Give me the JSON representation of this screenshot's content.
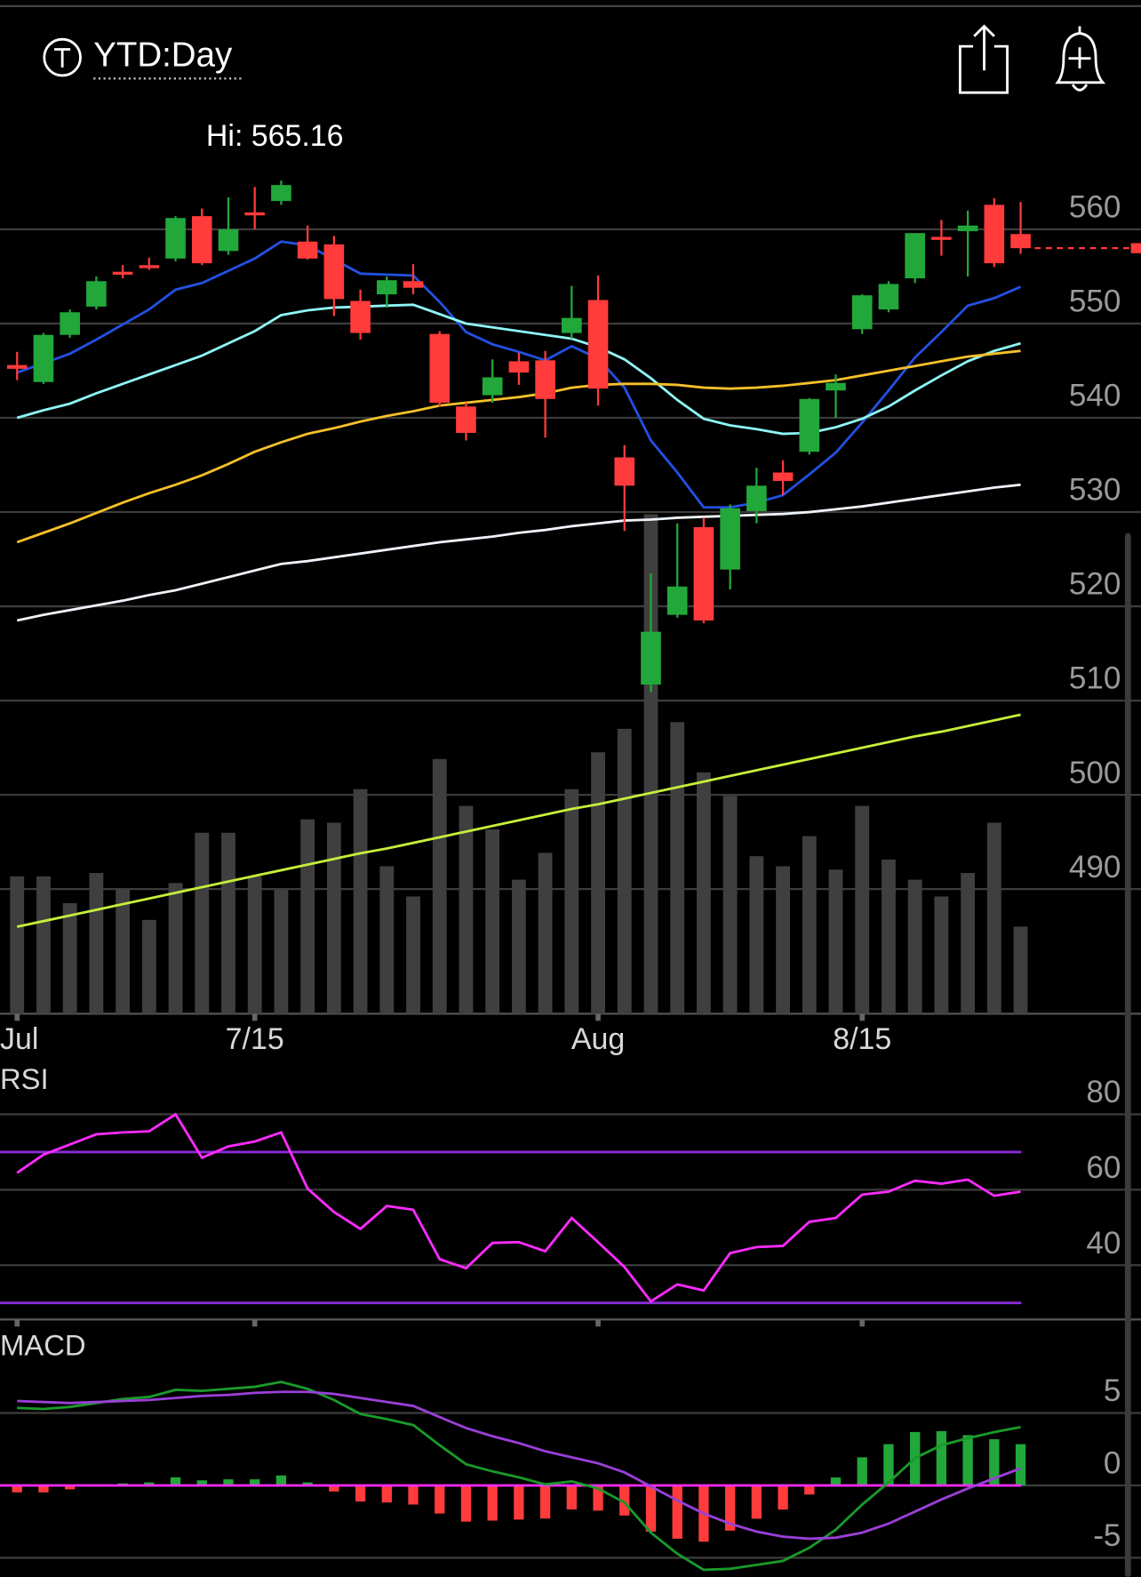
{
  "header": {
    "title": "YTD:Day"
  },
  "chart_data": {
    "type": "candlestick",
    "annotation": "Hi: 565.16",
    "categories": [
      "Jul",
      null,
      null,
      null,
      null,
      null,
      null,
      null,
      null,
      "7/15",
      null,
      null,
      null,
      null,
      null,
      null,
      null,
      null,
      null,
      null,
      null,
      null,
      "Aug",
      null,
      null,
      null,
      null,
      null,
      null,
      null,
      null,
      null,
      "8/15",
      null,
      null,
      null,
      null,
      null,
      null
    ],
    "open": [
      545.6,
      543.8,
      548.8,
      551.8,
      555.5,
      556.2,
      556.9,
      561.4,
      557.7,
      561.8,
      563.0,
      558.7,
      558.4,
      552.4,
      553.1,
      554.5,
      548.9,
      541.2,
      542.4,
      546.0,
      546.1,
      549.0,
      552.5,
      535.8,
      511.7,
      519.1,
      528.4,
      523.9,
      530.1,
      534.2,
      536.4,
      542.9,
      549.4,
      551.5,
      554.8,
      559.2,
      559.8,
      562.6,
      559.5
    ],
    "high": [
      547.0,
      549.0,
      551.5,
      555.0,
      556.2,
      557.0,
      561.4,
      562.2,
      563.4,
      564.5,
      565.16,
      560.4,
      559.3,
      553.6,
      555.0,
      556.3,
      549.2,
      541.6,
      546.2,
      546.9,
      547.1,
      554.0,
      555.1,
      537.1,
      523.5,
      528.8,
      529.4,
      530.8,
      534.7,
      535.5,
      542.1,
      544.6,
      553.1,
      554.5,
      559.6,
      561.0,
      562.0,
      563.3,
      562.9
    ],
    "low": [
      544.0,
      543.6,
      548.5,
      551.5,
      554.8,
      555.7,
      556.6,
      556.2,
      557.3,
      560.0,
      562.6,
      556.8,
      550.8,
      548.3,
      551.7,
      553.1,
      541.2,
      537.6,
      541.6,
      543.5,
      537.9,
      548.4,
      541.3,
      528.0,
      510.9,
      518.8,
      518.2,
      521.8,
      528.8,
      531.8,
      536.1,
      540.0,
      548.9,
      551.2,
      554.3,
      557.2,
      555.0,
      556.0,
      557.4
    ],
    "close": [
      545.2,
      548.8,
      551.2,
      554.5,
      555.3,
      555.9,
      561.2,
      556.4,
      560.0,
      561.6,
      564.7,
      556.9,
      552.6,
      549.0,
      554.6,
      553.8,
      541.6,
      538.4,
      544.3,
      544.8,
      542.0,
      550.6,
      543.1,
      532.8,
      517.3,
      522.1,
      518.5,
      530.4,
      532.8,
      533.3,
      542.0,
      543.7,
      553.0,
      554.2,
      559.6,
      558.9,
      560.4,
      556.4,
      558.0
    ],
    "up_color": "#22a83a",
    "down_color": "#ff3b3b",
    "last_color": "#ff3b3b",
    "ylim": [
      476.77,
      571.52
    ],
    "yticks": [
      490,
      500,
      510,
      520,
      530,
      540,
      550,
      560
    ],
    "grid": true,
    "overlays": [
      {
        "color": "#2350e0",
        "values": [
          544.8,
          545.8,
          546.8,
          548.3,
          549.9,
          551.5,
          553.6,
          554.3,
          555.6,
          556.9,
          558.7,
          558.3,
          556.8,
          555.3,
          555.2,
          555.1,
          552.3,
          549.1,
          547.8,
          547.0,
          546.1,
          547.6,
          546.3,
          543.2,
          537.6,
          534.2,
          530.5,
          530.5,
          531.0,
          531.8,
          534.0,
          536.3,
          539.5,
          542.9,
          546.4,
          549.1,
          551.9,
          552.7,
          553.9
        ]
      },
      {
        "color": "#8ff5f5",
        "values": [
          540.0,
          540.8,
          541.5,
          542.6,
          543.6,
          544.6,
          545.6,
          546.6,
          547.9,
          549.2,
          550.9,
          551.4,
          551.7,
          551.8,
          551.9,
          552.0,
          551.0,
          550.0,
          549.6,
          549.2,
          548.8,
          548.4,
          547.5,
          546.2,
          544.2,
          541.9,
          539.9,
          539.2,
          538.8,
          538.3,
          538.4,
          539.0,
          539.9,
          541.2,
          542.9,
          544.5,
          546.0,
          547.1,
          547.9
        ]
      },
      {
        "color": "#f5c02a",
        "values": [
          526.8,
          527.8,
          528.8,
          529.9,
          531.0,
          532.0,
          532.9,
          533.9,
          535.1,
          536.4,
          537.4,
          538.3,
          538.9,
          539.6,
          540.2,
          540.7,
          541.3,
          541.6,
          541.9,
          542.2,
          542.6,
          543.2,
          543.5,
          543.6,
          543.6,
          543.5,
          543.2,
          543.1,
          543.2,
          543.4,
          543.7,
          544.0,
          544.5,
          545.0,
          545.5,
          546.0,
          546.5,
          546.8,
          547.1
        ]
      },
      {
        "color": "#eef3fa",
        "values": [
          518.5,
          519.1,
          519.6,
          520.1,
          520.6,
          521.2,
          521.7,
          522.4,
          523.1,
          523.8,
          524.5,
          524.8,
          525.2,
          525.6,
          526.0,
          526.4,
          526.8,
          527.1,
          527.4,
          527.8,
          528.1,
          528.5,
          528.8,
          529.1,
          529.2,
          529.4,
          529.5,
          529.6,
          529.7,
          529.8,
          530.0,
          530.3,
          530.6,
          531.0,
          531.4,
          531.8,
          532.2,
          532.6,
          532.9
        ]
      },
      {
        "color": "#c5ef3a",
        "values": [
          486.0,
          486.6,
          487.2,
          487.8,
          488.4,
          489.0,
          489.6,
          490.2,
          490.8,
          491.4,
          492.0,
          492.6,
          493.2,
          493.8,
          494.3,
          494.9,
          495.5,
          496.1,
          496.7,
          497.3,
          497.9,
          498.5,
          499.0,
          499.6,
          500.2,
          500.8,
          501.4,
          502.0,
          502.6,
          503.2,
          503.8,
          504.4,
          505.0,
          505.6,
          506.2,
          506.7,
          507.3,
          507.9,
          508.5
        ]
      }
    ],
    "volume": {
      "color": "#3f3f3f",
      "ylim": [
        0,
        150
      ],
      "values": [
        41,
        41,
        33,
        42,
        37,
        28,
        39,
        54,
        54,
        41,
        37,
        58,
        57,
        67,
        44,
        35,
        76,
        62,
        55,
        40,
        48,
        67,
        78,
        85,
        149,
        87,
        72,
        65,
        47,
        44,
        53,
        43,
        62,
        46,
        40,
        35,
        42,
        57,
        26
      ]
    },
    "rsi": {
      "title": "RSI",
      "color": "#ff2bff",
      "level_color": "#8a2bd8",
      "levels": [
        70,
        30
      ],
      "ylim": [
        25.6,
        92.8
      ],
      "yticks": [
        40,
        60,
        80
      ],
      "values": [
        64.5,
        69.3,
        72.0,
        74.7,
        75.2,
        75.5,
        80.0,
        68.5,
        71.5,
        72.8,
        75.2,
        60.3,
        54.1,
        49.6,
        55.7,
        54.7,
        41.6,
        39.2,
        45.9,
        46.1,
        43.7,
        52.5,
        46.1,
        39.5,
        30.4,
        34.9,
        33.3,
        43.2,
        44.8,
        45.1,
        51.5,
        52.5,
        58.7,
        59.5,
        62.4,
        61.6,
        62.7,
        58.4,
        59.5
      ]
    },
    "macd": {
      "title": "MACD",
      "ylim": [
        -6.32,
        10.21
      ],
      "yticks": [
        -5,
        0,
        5
      ],
      "zero_color": "#ff2bff",
      "macd": {
        "color": "#1a9a2a",
        "values": [
          5.35,
          5.28,
          5.42,
          5.69,
          5.97,
          6.11,
          6.6,
          6.53,
          6.67,
          6.81,
          7.15,
          6.67,
          5.9,
          4.93,
          4.58,
          4.17,
          2.78,
          1.46,
          0.97,
          0.56,
          0.07,
          0.28,
          -0.21,
          -1.18,
          -3.26,
          -4.72,
          -5.83,
          -5.76,
          -5.49,
          -5.21,
          -4.31,
          -3.06,
          -1.32,
          0.21,
          1.88,
          2.78,
          3.26,
          3.68,
          4.03
        ]
      },
      "signal": {
        "color": "#9a3fd8",
        "values": [
          5.83,
          5.76,
          5.69,
          5.76,
          5.83,
          5.9,
          6.04,
          6.18,
          6.25,
          6.39,
          6.46,
          6.46,
          6.32,
          6.04,
          5.76,
          5.49,
          4.72,
          3.96,
          3.4,
          2.92,
          2.36,
          1.94,
          1.53,
          0.9,
          -0.07,
          -1.04,
          -1.94,
          -2.64,
          -3.19,
          -3.54,
          -3.68,
          -3.61,
          -3.26,
          -2.64,
          -1.81,
          -0.97,
          -0.21,
          0.49,
          1.18
        ]
      },
      "histogram": {
        "up_color": "#22a83a",
        "down_color": "#ff3b3b",
        "values": [
          -0.48,
          -0.48,
          -0.27,
          -0.07,
          0.14,
          0.21,
          0.56,
          0.35,
          0.42,
          0.42,
          0.69,
          0.21,
          -0.42,
          -1.11,
          -1.18,
          -1.32,
          -1.94,
          -2.5,
          -2.43,
          -2.36,
          -2.29,
          -1.66,
          -1.74,
          -2.08,
          -3.19,
          -3.68,
          -3.89,
          -3.12,
          -2.3,
          -1.67,
          -0.63,
          0.55,
          1.94,
          2.85,
          3.69,
          3.75,
          3.47,
          3.19,
          2.85
        ]
      }
    }
  }
}
